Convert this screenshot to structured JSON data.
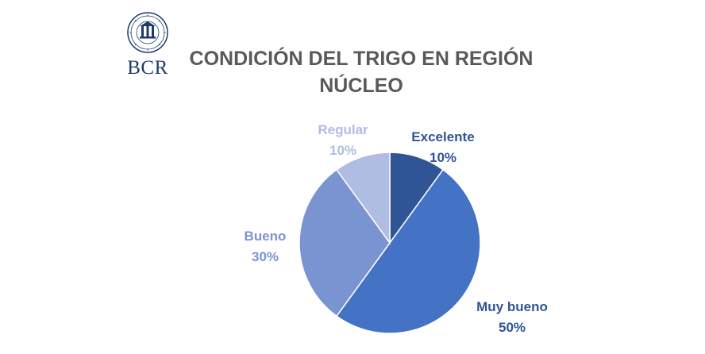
{
  "logo": {
    "text": "BCR"
  },
  "chart_data": {
    "type": "pie",
    "title_lines": [
      "CONDICIÓN DEL TRIGO EN REGIÓN",
      "NÚCLEO"
    ],
    "start_angle_deg": 0,
    "direction": "clockwise",
    "slices": [
      {
        "label": "Excelente",
        "value": 10,
        "value_label": "10%",
        "color": "#2f5597",
        "label_color": "#2f5597"
      },
      {
        "label": "Muy bueno",
        "value": 50,
        "value_label": "50%",
        "color": "#4472c4",
        "label_color": "#2f5597"
      },
      {
        "label": "Bueno",
        "value": 30,
        "value_label": "30%",
        "color": "#7a94d2",
        "label_color": "#7a94d2"
      },
      {
        "label": "Regular",
        "value": 10,
        "value_label": "10%",
        "color": "#b0bde2",
        "label_color": "#b0bde2"
      }
    ],
    "legend": "none"
  }
}
